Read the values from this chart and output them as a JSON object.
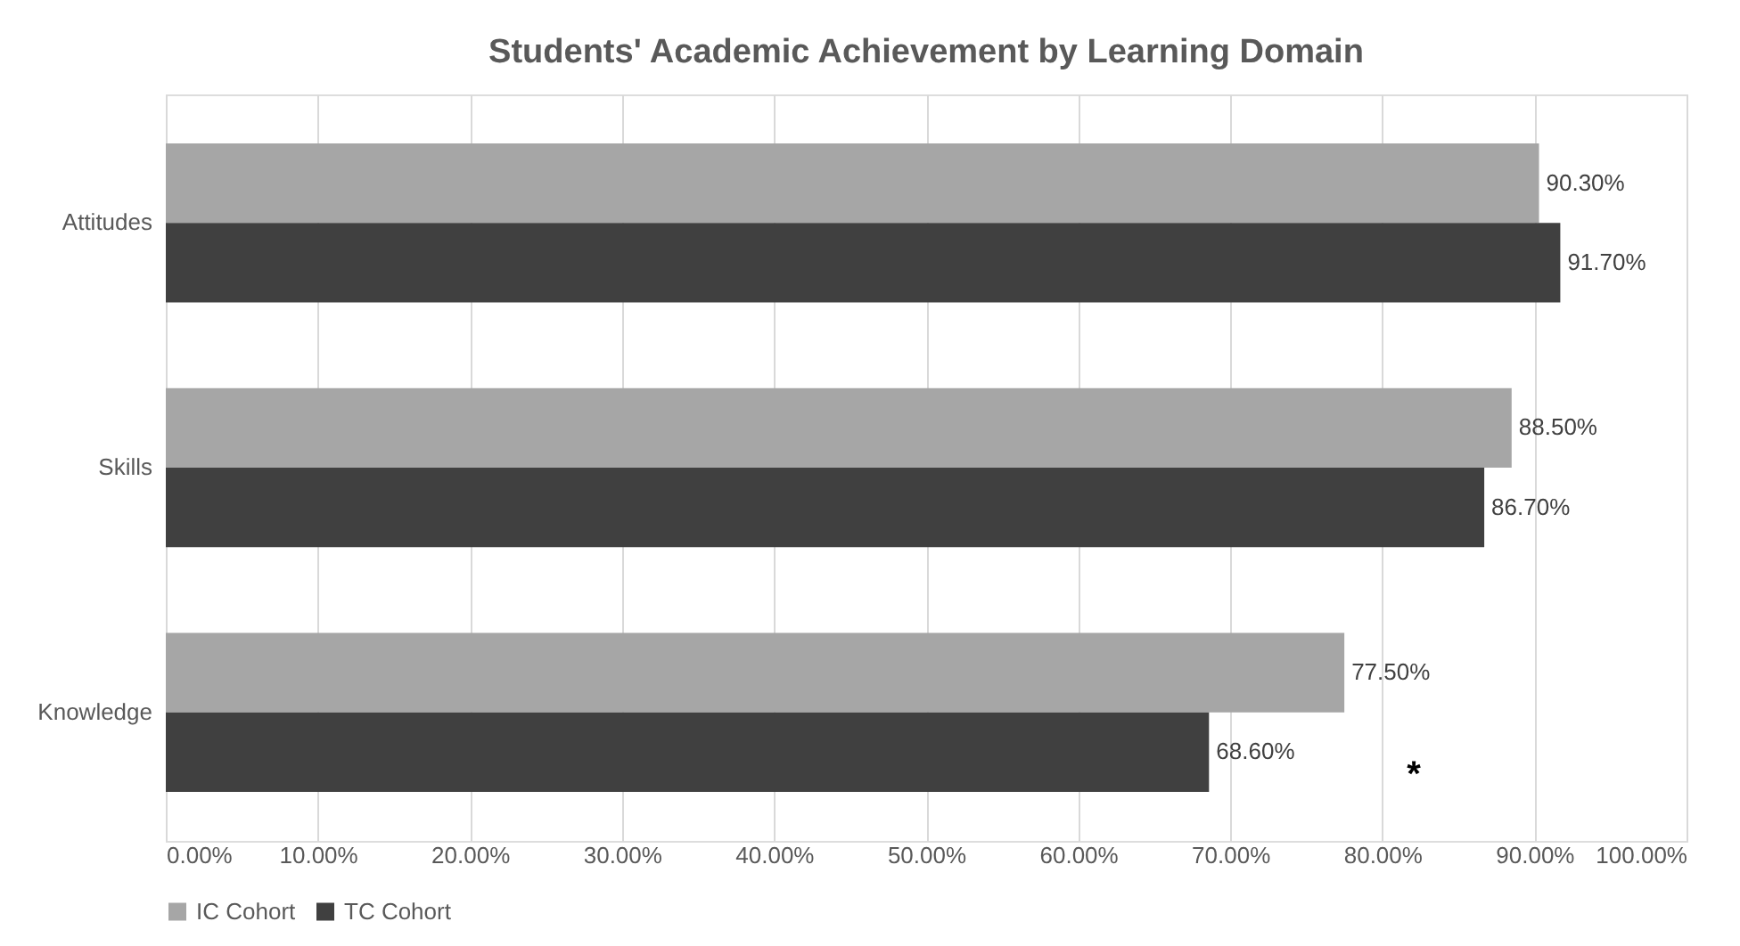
{
  "chart_data": {
    "type": "bar",
    "orientation": "horizontal",
    "title": "Students' Academic Achievement by Learning Domain",
    "categories": [
      "Attitudes",
      "Skills",
      "Knowledge"
    ],
    "series": [
      {
        "name": "IC Cohort",
        "color": "#a6a6a6",
        "values": [
          90.3,
          88.5,
          77.5
        ],
        "value_labels": [
          "90.30%",
          "88.50%",
          "77.50%"
        ]
      },
      {
        "name": "TC Cohort",
        "color": "#404040",
        "values": [
          91.7,
          86.7,
          68.6
        ],
        "value_labels": [
          "91.70%",
          "86.70%",
          "68.60%"
        ]
      }
    ],
    "xlim": [
      0,
      100
    ],
    "xticks": [
      {
        "value": 0,
        "label": "0.00%"
      },
      {
        "value": 10,
        "label": "10.00%"
      },
      {
        "value": 20,
        "label": "20.00%"
      },
      {
        "value": 30,
        "label": "30.00%"
      },
      {
        "value": 40,
        "label": "40.00%"
      },
      {
        "value": 50,
        "label": "50.00%"
      },
      {
        "value": 60,
        "label": "60.00%"
      },
      {
        "value": 70,
        "label": "70.00%"
      },
      {
        "value": 80,
        "label": "80.00%"
      },
      {
        "value": 90,
        "label": "90.00%"
      },
      {
        "value": 100,
        "label": "100.00%"
      }
    ],
    "annotations": [
      "*"
    ],
    "grid": "x",
    "legend": "bottom"
  }
}
